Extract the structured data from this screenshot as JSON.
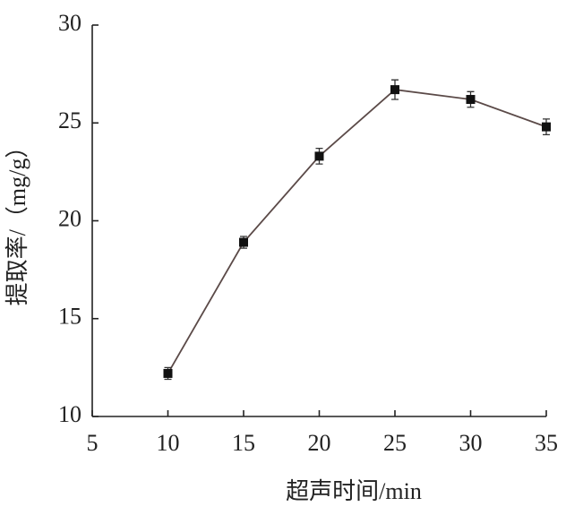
{
  "chart_data": {
    "type": "line",
    "xlabel": "超声时间/min",
    "ylabel": "提取率/（mg/g）",
    "x": [
      10,
      15,
      20,
      25,
      30,
      35
    ],
    "series": [
      {
        "color": "#5b4a48",
        "marker_color": "#111111",
        "values": [
          12.2,
          18.9,
          23.3,
          26.7,
          26.2,
          24.8
        ],
        "errors": [
          0.3,
          0.3,
          0.4,
          0.5,
          0.4,
          0.4
        ]
      }
    ],
    "xlim": [
      5,
      35
    ],
    "xticks": [
      5,
      10,
      15,
      20,
      25,
      30,
      35
    ],
    "ylim": [
      10,
      30
    ],
    "yticks": [
      10,
      15,
      20,
      25,
      30
    ],
    "grid": false
  }
}
